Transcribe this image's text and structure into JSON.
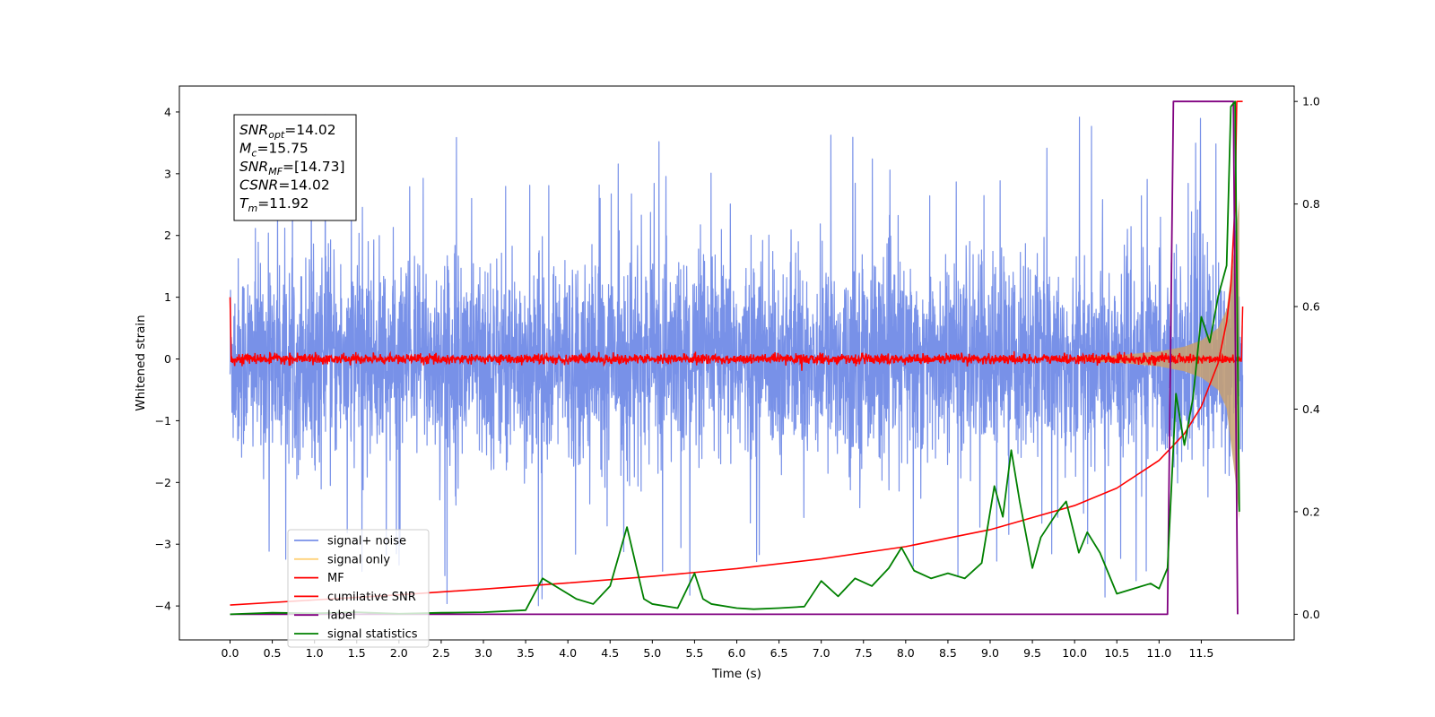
{
  "chart_data": {
    "type": "line",
    "xlabel": "Time (s)",
    "ylabel": "Whitened strain",
    "xlim": [
      -0.6,
      12.6
    ],
    "ylim": [
      -4.55,
      4.42
    ],
    "y2lim": [
      -0.05,
      1.03
    ],
    "x_ticks": [
      0.0,
      0.5,
      1.0,
      1.5,
      2.0,
      2.5,
      3.0,
      3.5,
      4.0,
      4.5,
      5.0,
      5.5,
      6.0,
      6.5,
      7.0,
      7.5,
      8.0,
      8.5,
      9.0,
      9.5,
      10.0,
      10.5,
      11.0,
      11.5
    ],
    "x_tick_labels": [
      "0.0",
      "0.5",
      "1.0",
      "1.5",
      "2.0",
      "2.5",
      "3.0",
      "3.5",
      "4.0",
      "4.5",
      "5.0",
      "5.5",
      "6.0",
      "6.5",
      "7.0",
      "7.5",
      "8.0",
      "8.5",
      "9.0",
      "9.5",
      "10.0",
      "10.5",
      "11.0",
      "11.5"
    ],
    "y_ticks": [
      4,
      3,
      2,
      1,
      0,
      -1,
      -2,
      -3,
      -4
    ],
    "y_tick_labels": [
      "4",
      "3",
      "2",
      "1",
      "0",
      "−1",
      "−2",
      "−3",
      "−4"
    ],
    "y2_ticks": [
      1.0,
      0.8,
      0.6,
      0.4,
      0.2,
      0.0
    ],
    "y2_tick_labels": [
      "1.0",
      "0.8",
      "0.6",
      "0.4",
      "0.2",
      "0.0"
    ],
    "annotation_lines": [
      {
        "name": "SNR",
        "sub": "opt",
        "value": "=14.02"
      },
      {
        "name": "M",
        "sub": "c",
        "value": "=15.75"
      },
      {
        "name": "SNR",
        "sub": "MF",
        "value": "=[14.73]"
      },
      {
        "name": "CSNR",
        "sub": "",
        "value": "=14.02"
      },
      {
        "name": "T",
        "sub": "m",
        "value": "=11.92"
      }
    ],
    "legend": {
      "placement": "lower-left",
      "entries": [
        {
          "label": "signal+ noise",
          "color": "#7891e8"
        },
        {
          "label": "signal only",
          "color": "#ffd27a"
        },
        {
          "label": "MF",
          "color": "#ff0000"
        },
        {
          "label": "cumilative SNR",
          "color": "#ff0000"
        },
        {
          "label": "label",
          "color": "#800080"
        },
        {
          "label": "signal statistics",
          "color": "#008000"
        }
      ]
    },
    "series": [
      {
        "name": "signal+ noise",
        "axis": "left",
        "color": "#7891e8",
        "style": "dense noise trace",
        "x_range": [
          0.0,
          11.99
        ],
        "typical_band": [
          -1.6,
          1.6
        ],
        "extremes": [
          -4.15,
          4.02
        ]
      },
      {
        "name": "signal only",
        "axis": "left",
        "color": "#c8a070",
        "style": "chirp envelope",
        "x": [
          10.0,
          10.5,
          11.0,
          11.3,
          11.5,
          11.7,
          11.8,
          11.9,
          11.95
        ],
        "envelope": [
          0.03,
          0.06,
          0.12,
          0.2,
          0.3,
          0.5,
          0.8,
          1.9,
          2.6
        ]
      },
      {
        "name": "MF",
        "axis": "left",
        "color": "#ff0000",
        "style": "noisy trace",
        "x_range": [
          0.0,
          11.99
        ],
        "typical_band": [
          -0.08,
          0.08
        ],
        "start_value": 1.0,
        "end_value": 0.85
      },
      {
        "name": "cumilative SNR",
        "axis": "right",
        "color": "#ff0000",
        "x": [
          0.0,
          1.0,
          2.0,
          3.0,
          4.0,
          5.0,
          6.0,
          7.0,
          8.0,
          9.0,
          10.0,
          10.5,
          11.0,
          11.3,
          11.5,
          11.7,
          11.8,
          11.85,
          11.9,
          11.92,
          11.99
        ],
        "values": [
          0.018,
          0.028,
          0.038,
          0.049,
          0.061,
          0.074,
          0.089,
          0.108,
          0.132,
          0.165,
          0.212,
          0.246,
          0.3,
          0.352,
          0.405,
          0.49,
          0.57,
          0.64,
          0.8,
          1.0,
          1.0
        ]
      },
      {
        "name": "label",
        "axis": "right",
        "color": "#800080",
        "x": [
          0.0,
          11.1,
          11.17,
          11.88,
          11.93
        ],
        "values": [
          0.0,
          0.0,
          1.0,
          1.0,
          0.0
        ]
      },
      {
        "name": "signal statistics",
        "axis": "right",
        "color": "#008000",
        "x": [
          0.0,
          0.5,
          1.0,
          1.5,
          2.0,
          2.5,
          3.0,
          3.5,
          3.7,
          3.9,
          4.1,
          4.3,
          4.5,
          4.7,
          4.9,
          5.0,
          5.3,
          5.5,
          5.6,
          5.7,
          6.0,
          6.2,
          6.5,
          6.8,
          7.0,
          7.2,
          7.4,
          7.6,
          7.8,
          7.95,
          8.1,
          8.3,
          8.5,
          8.7,
          8.9,
          9.05,
          9.15,
          9.25,
          9.35,
          9.5,
          9.6,
          9.8,
          9.9,
          10.05,
          10.15,
          10.3,
          10.5,
          10.7,
          10.9,
          11.0,
          11.1,
          11.2,
          11.3,
          11.4,
          11.5,
          11.6,
          11.7,
          11.8,
          11.85,
          11.9,
          11.95
        ],
        "values": [
          0.0,
          0.003,
          0.002,
          0.004,
          0.001,
          0.003,
          0.004,
          0.008,
          0.07,
          0.05,
          0.03,
          0.02,
          0.055,
          0.17,
          0.03,
          0.02,
          0.012,
          0.08,
          0.03,
          0.02,
          0.012,
          0.01,
          0.012,
          0.015,
          0.065,
          0.035,
          0.07,
          0.055,
          0.09,
          0.13,
          0.085,
          0.07,
          0.08,
          0.07,
          0.1,
          0.25,
          0.19,
          0.32,
          0.22,
          0.09,
          0.15,
          0.2,
          0.22,
          0.12,
          0.16,
          0.12,
          0.04,
          0.05,
          0.06,
          0.05,
          0.09,
          0.43,
          0.33,
          0.42,
          0.58,
          0.53,
          0.62,
          0.68,
          0.99,
          1.0,
          0.2
        ]
      }
    ]
  }
}
